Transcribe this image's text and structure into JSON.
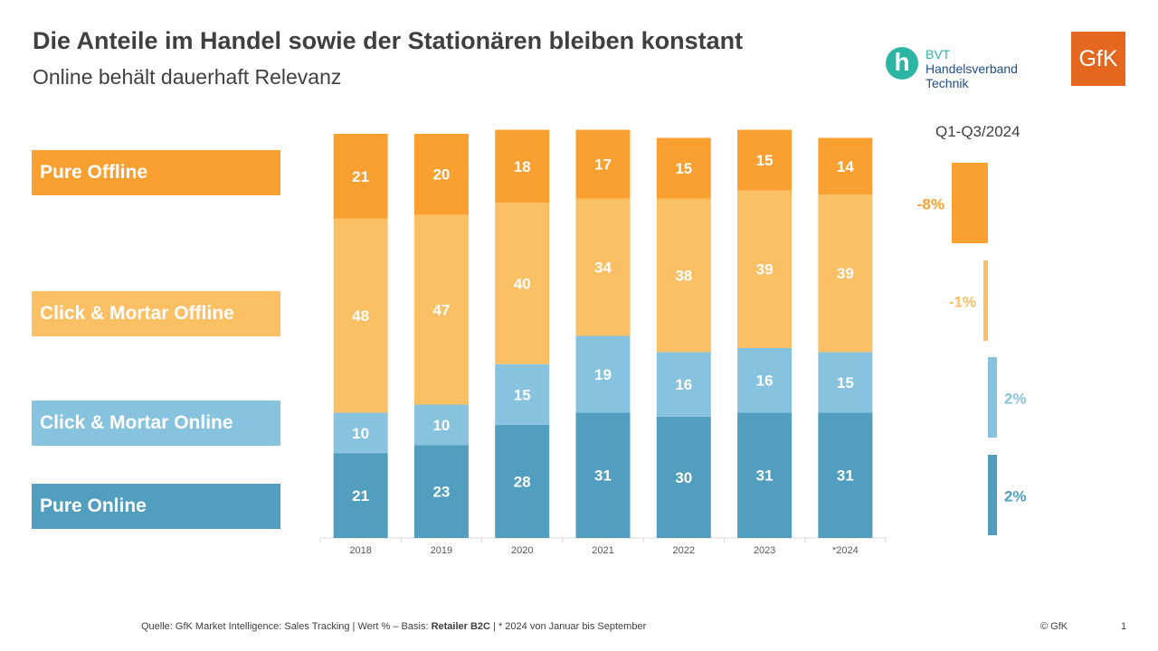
{
  "header": {
    "title": "Die Anteile im Handel sowie der Stationären bleiben konstant",
    "subtitle": "Online behält dauerhaft Relevanz"
  },
  "logos": {
    "bvt_glyph": "h",
    "bvt_line1": "BVT",
    "bvt_line2": "Handelsverband",
    "bvt_line3": "Technik",
    "gfk": "GfK"
  },
  "colors": {
    "pure_offline": "#f9a030",
    "cm_offline": "#fbbf64",
    "cm_online": "#87c3de",
    "pure_online": "#519ebe",
    "axis": "#d9d9d9",
    "tick_label": "#595959"
  },
  "chart_data": {
    "type": "bar",
    "stacked": true,
    "title": "",
    "xlabel": "",
    "ylabel": "",
    "ylim": [
      0,
      100
    ],
    "categories": [
      "2018",
      "2019",
      "2020",
      "2021",
      "2022",
      "2023",
      "*2024"
    ],
    "series": [
      {
        "name": "Pure Online",
        "key": "pure_online",
        "values": [
          21,
          23,
          28,
          31,
          30,
          31,
          31
        ]
      },
      {
        "name": "Click & Mortar Online",
        "key": "cm_online",
        "values": [
          10,
          10,
          15,
          19,
          16,
          16,
          15
        ]
      },
      {
        "name": "Click & Mortar Offline",
        "key": "cm_offline",
        "values": [
          48,
          47,
          40,
          34,
          38,
          39,
          39
        ]
      },
      {
        "name": "Pure Offline",
        "key": "pure_offline",
        "values": [
          21,
          20,
          18,
          17,
          15,
          15,
          14
        ]
      }
    ],
    "legend": [
      "Pure Offline",
      "Click & Mortar Offline",
      "Click & Mortar Online",
      "Pure Online"
    ],
    "legend_placement": "left",
    "grid": false,
    "change_panel": {
      "title": "Q1-Q3/2024",
      "items": [
        {
          "name": "Pure Offline",
          "key": "pure_offline",
          "value": -8,
          "label": "-8%"
        },
        {
          "name": "Click & Mortar Offline",
          "key": "cm_offline",
          "value": -1,
          "label": "-1%"
        },
        {
          "name": "Click & Mortar Online",
          "key": "cm_online",
          "value": 2,
          "label": "2%"
        },
        {
          "name": "Pure Online",
          "key": "pure_online",
          "value": 2,
          "label": "2%"
        }
      ]
    }
  },
  "footer": {
    "source_prefix": "Quelle: GfK Market Intelligence: Sales Tracking | Wert % – Basis: ",
    "source_bold": "Retailer B2C",
    "source_suffix": " | * 2024 von Januar bis September",
    "copyright": "© GfK",
    "page_number": "1"
  }
}
